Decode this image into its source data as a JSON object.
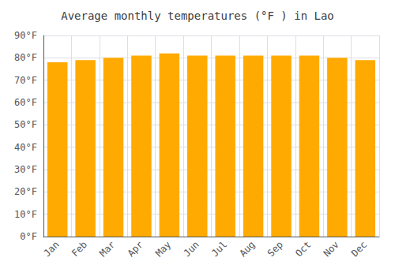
{
  "chart_data": {
    "type": "bar",
    "title": "Average monthly temperatures (°F ) in Lao",
    "categories": [
      "Jan",
      "Feb",
      "Mar",
      "Apr",
      "May",
      "Jun",
      "Jul",
      "Aug",
      "Sep",
      "Oct",
      "Nov",
      "Dec"
    ],
    "values": [
      78,
      79,
      80,
      81,
      82,
      81,
      81,
      81,
      81,
      81,
      80,
      79
    ],
    "color": "#FFAA00",
    "ylim": [
      0,
      90
    ],
    "yticks": [
      {
        "value": 0,
        "label": "0°F"
      },
      {
        "value": 10,
        "label": "10°F"
      },
      {
        "value": 20,
        "label": "20°F"
      },
      {
        "value": 30,
        "label": "30°F"
      },
      {
        "value": 40,
        "label": "40°F"
      },
      {
        "value": 50,
        "label": "50°F"
      },
      {
        "value": 60,
        "label": "60°F"
      },
      {
        "value": 70,
        "label": "70°F"
      },
      {
        "value": 80,
        "label": "80°F"
      },
      {
        "value": 90,
        "label": "90°F"
      }
    ],
    "grid": true
  }
}
